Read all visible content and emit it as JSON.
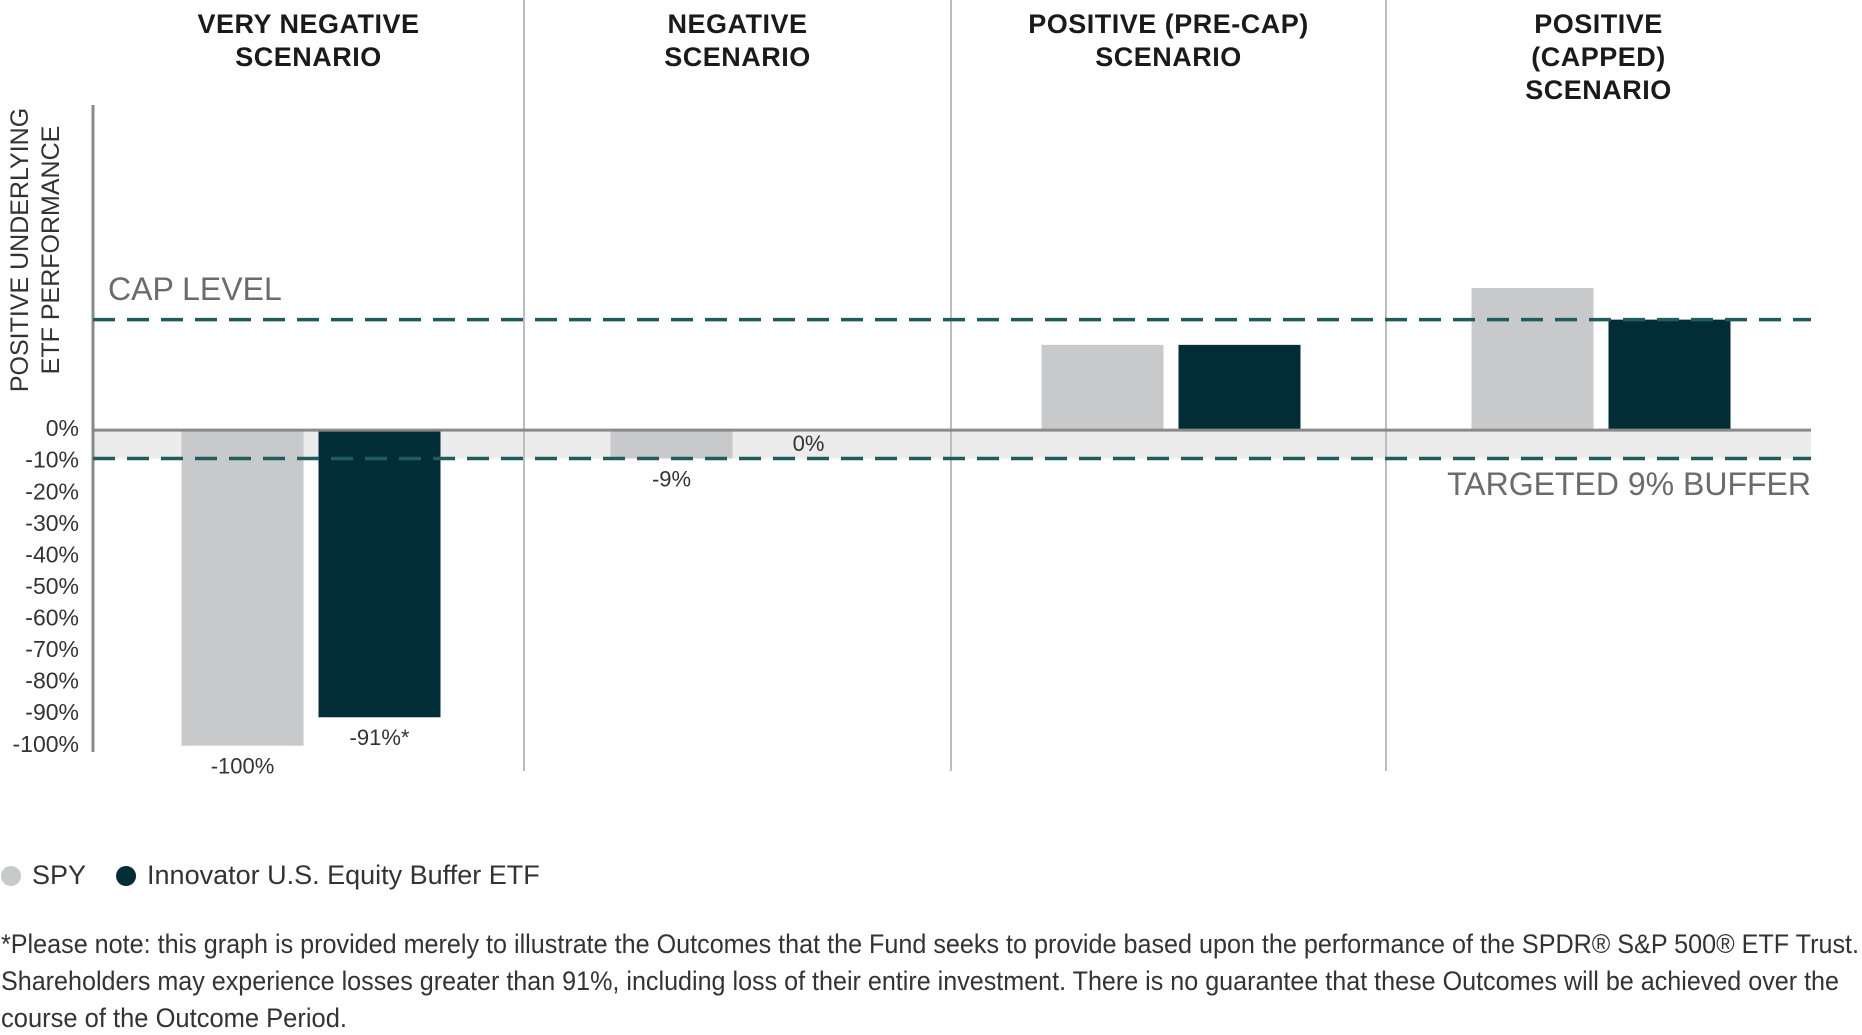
{
  "chart_data": {
    "type": "bar",
    "categories": [
      "VERY NEGATIVE\nSCENARIO",
      "NEGATIVE\nSCENARIO",
      "POSITIVE (PRE-CAP)\nSCENARIO",
      "POSITIVE (CAPPED)\nSCENARIO"
    ],
    "ylabel": "POSITIVE UNDERLYING\nETF PERFORMANCE",
    "series": [
      {
        "name": "SPY",
        "color": "#c8c9ca",
        "values": [
          -100,
          -9,
          27,
          45
        ],
        "value_labels": [
          "-100%",
          "-9%",
          null,
          null
        ]
      },
      {
        "name": "Innovator U.S. Equity Buffer ETF",
        "color": "#032d36",
        "values": [
          -91,
          0,
          27,
          35
        ],
        "value_labels": [
          "-91%*",
          "0%",
          null,
          null
        ]
      }
    ],
    "ylim": [
      -102,
      103
    ],
    "yticks": [
      {
        "value": 0,
        "label": "0%"
      },
      {
        "value": -10,
        "label": "-10%"
      },
      {
        "value": -20,
        "label": "-20%"
      },
      {
        "value": -30,
        "label": "-30%"
      },
      {
        "value": -40,
        "label": "-40%"
      },
      {
        "value": -50,
        "label": "-50%"
      },
      {
        "value": -60,
        "label": "-60%"
      },
      {
        "value": -70,
        "label": "-70%"
      },
      {
        "value": -80,
        "label": "-80%"
      },
      {
        "value": -90,
        "label": "-90%"
      },
      {
        "value": -100,
        "label": "-100%"
      }
    ],
    "reference_lines": [
      {
        "value": 35,
        "label": "CAP LEVEL",
        "color": "#1f5c5c"
      },
      {
        "value": -9,
        "label": "TARGETED 9% BUFFER",
        "color": "#1f5c5c"
      }
    ],
    "buffer_band_color": "#ececec",
    "legend": "bottom-left"
  },
  "footnote": [
    "*Please note: this graph is provided merely to illustrate the Outcomes that the Fund seeks to provide based upon the performance of the SPDR® S&P 500® ETF Trust.",
    "Shareholders may experience losses greater than 91%, including loss of their entire investment. There is no guarantee that these Outcomes will be achieved over the",
    "course of the Outcome Period."
  ]
}
